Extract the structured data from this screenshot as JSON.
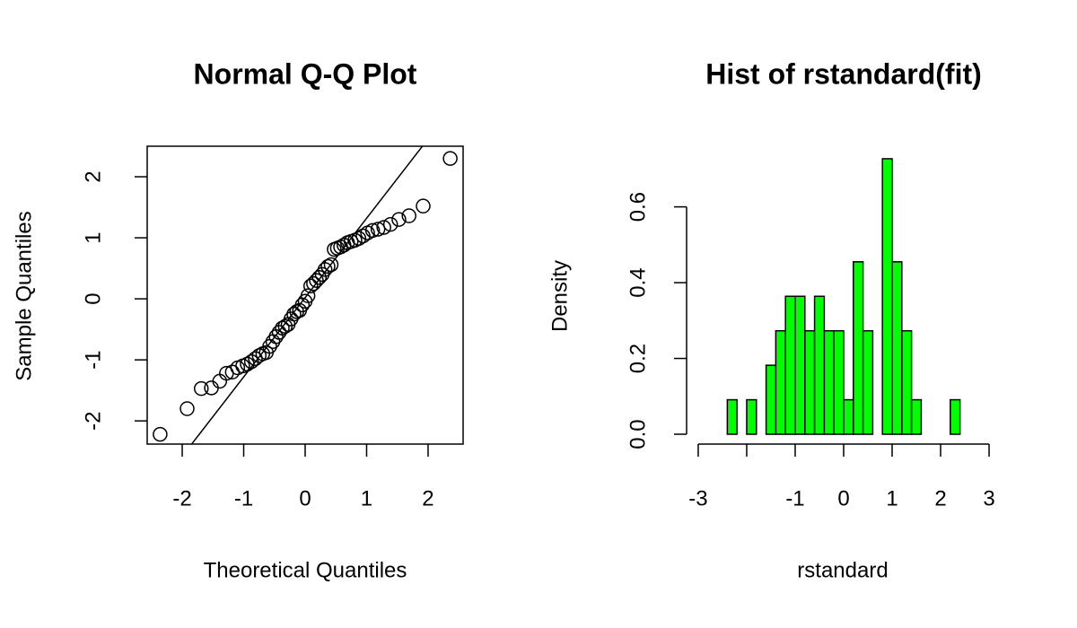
{
  "chart_data": [
    {
      "type": "scatter",
      "title": "Normal Q-Q Plot",
      "xlabel": "Theoretical Quantiles",
      "ylabel": "Sample Quantiles",
      "x": [
        -2.36,
        -1.92,
        -1.69,
        -1.525,
        -1.39,
        -1.28,
        -1.185,
        -1.097,
        -1.016,
        -0.942,
        -0.874,
        -0.81,
        -0.748,
        -0.689,
        -0.632,
        -0.577,
        -0.524,
        -0.473,
        -0.423,
        -0.372,
        -0.324,
        -0.277,
        -0.23,
        -0.183,
        -0.137,
        -0.091,
        -0.046,
        0,
        0.046,
        0.091,
        0.137,
        0.183,
        0.23,
        0.277,
        0.324,
        0.372,
        0.423,
        0.473,
        0.524,
        0.577,
        0.632,
        0.689,
        0.748,
        0.81,
        0.874,
        0.942,
        1.016,
        1.097,
        1.185,
        1.28,
        1.39,
        1.525,
        1.69,
        1.92,
        2.36
      ],
      "values": [
        -2.22,
        -1.8,
        -1.47,
        -1.46,
        -1.35,
        -1.22,
        -1.2,
        -1.13,
        -1.1,
        -1.07,
        -1.03,
        -0.98,
        -0.93,
        -0.9,
        -0.88,
        -0.78,
        -0.7,
        -0.62,
        -0.55,
        -0.48,
        -0.45,
        -0.42,
        -0.33,
        -0.25,
        -0.21,
        -0.19,
        -0.1,
        -0.04,
        0.05,
        0.21,
        0.25,
        0.3,
        0.35,
        0.4,
        0.48,
        0.53,
        0.56,
        0.81,
        0.83,
        0.85,
        0.88,
        0.92,
        0.94,
        0.96,
        0.99,
        1.03,
        1.08,
        1.12,
        1.14,
        1.17,
        1.22,
        1.3,
        1.36,
        1.52,
        2.3
      ],
      "color": "#000000",
      "qqline": {
        "intercept": 0.02,
        "slope": 1.3
      },
      "xlim": [
        -2.57,
        2.57
      ],
      "ylim": [
        -2.38,
        2.5
      ],
      "xticks": [
        -2,
        -1,
        0,
        1,
        2
      ],
      "yticks": [
        -2,
        -1,
        0,
        1,
        2
      ]
    },
    {
      "type": "histogram",
      "title": "Hist of rstandard(fit)",
      "xlabel": "rstandard",
      "ylabel": "Density",
      "bins": [
        -2.4,
        -2.2,
        -2.0,
        -1.8,
        -1.6,
        -1.4,
        -1.2,
        -1.0,
        -0.8,
        -0.6,
        -0.4,
        -0.2,
        0,
        0.2,
        0.4,
        0.6,
        0.8,
        1.0,
        1.2,
        1.4,
        1.6,
        1.8,
        2.0,
        2.2,
        2.4
      ],
      "values": [
        0.091,
        0,
        0.091,
        0,
        0.182,
        0.273,
        0.364,
        0.364,
        0.273,
        0.364,
        0.273,
        0.273,
        0.091,
        0.455,
        0.273,
        0,
        0.727,
        0.455,
        0.273,
        0.091,
        0,
        0,
        0,
        0.091
      ],
      "color": "#00ff00",
      "xlim": [
        -3.24,
        3.24
      ],
      "ylim": [
        -0.026,
        0.76
      ],
      "xticks": [
        {
          "value": -3,
          "label": "-3"
        },
        {
          "value": -2,
          "label": null
        },
        -1,
        0,
        1,
        2,
        3
      ],
      "yticks": [
        {
          "value": 0,
          "label": "0.0"
        },
        0.2,
        0.4,
        0.6
      ]
    }
  ]
}
